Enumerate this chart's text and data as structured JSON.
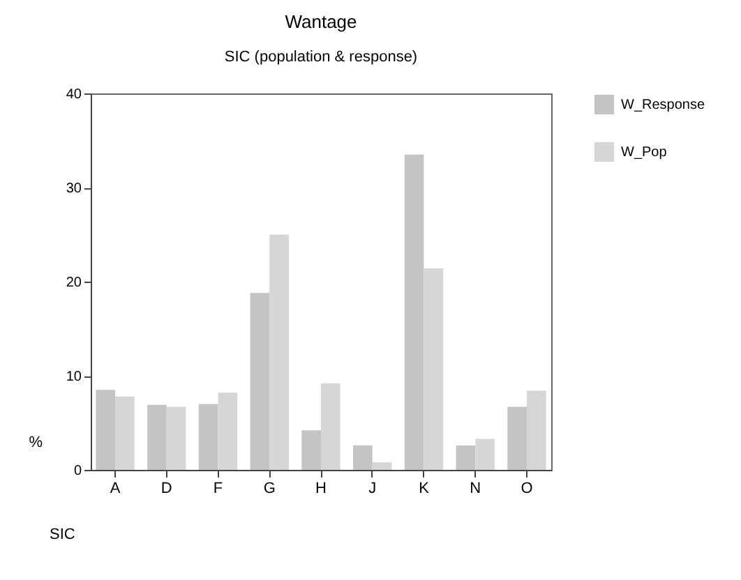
{
  "chart_data": {
    "type": "bar",
    "title": "Wantage",
    "subtitle": "SIC (population & response)",
    "xlabel": "SIC",
    "ylabel": "%",
    "categories": [
      "A",
      "D",
      "F",
      "G",
      "H",
      "J",
      "K",
      "N",
      "O"
    ],
    "series": [
      {
        "name": "W_Response",
        "color": "#c4c4c4",
        "values": [
          8.5,
          6.9,
          7.0,
          18.8,
          4.2,
          2.6,
          33.5,
          2.6,
          6.7
        ]
      },
      {
        "name": "W_Pop",
        "color": "#d6d6d6",
        "values": [
          7.8,
          6.7,
          8.2,
          25.0,
          9.2,
          0.8,
          21.4,
          3.3,
          8.4
        ]
      }
    ],
    "ylim": [
      0,
      40
    ],
    "yticks": [
      0,
      10,
      20,
      30,
      40
    ],
    "grid": false,
    "legend": "right"
  }
}
